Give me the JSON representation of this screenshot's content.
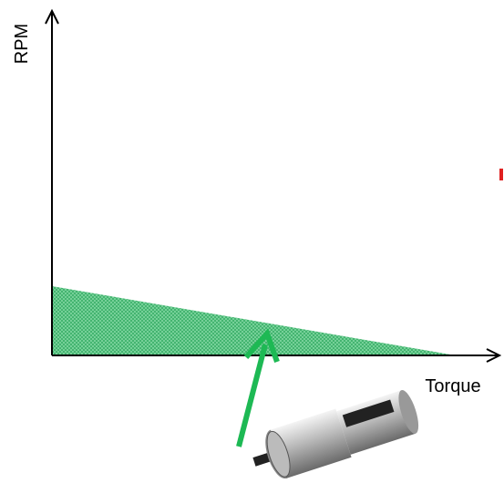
{
  "axes": {
    "y_label": "RPM",
    "x_label": "Torque"
  }
}
